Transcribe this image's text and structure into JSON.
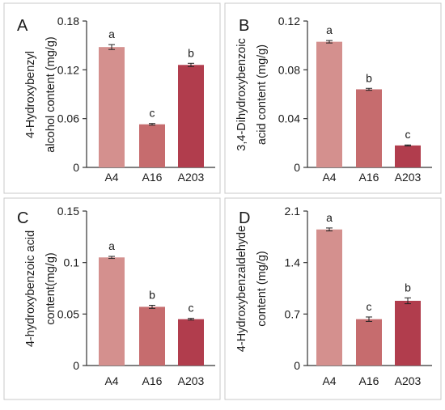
{
  "chart_data": [
    {
      "panel": "A",
      "type": "bar",
      "categories": [
        "A4",
        "A16",
        "A203"
      ],
      "values": [
        0.148,
        0.053,
        0.126
      ],
      "errors": [
        0.003,
        0.001,
        0.002
      ],
      "letters": [
        "a",
        "c",
        "b"
      ],
      "yticks": [
        "0",
        "0.06",
        "0.12",
        "0.18"
      ],
      "ylim": [
        0,
        0.18
      ],
      "ylabel": [
        "4-Hydroxybenzyl",
        "alcohol content (mg/g)"
      ],
      "colors": [
        "#d4908e",
        "#c66c6e",
        "#b13d4d"
      ]
    },
    {
      "panel": "B",
      "type": "bar",
      "categories": [
        "A4",
        "A16",
        "A203"
      ],
      "values": [
        0.103,
        0.064,
        0.018
      ],
      "errors": [
        0.001,
        0.0008,
        0.0004
      ],
      "letters": [
        "a",
        "b",
        "c"
      ],
      "yticks": [
        "0",
        "0.04",
        "0.08",
        "0.12"
      ],
      "ylim": [
        0,
        0.12
      ],
      "ylabel": [
        "3,4-Dihydroxybenzoic",
        "acid content (mg/g)"
      ],
      "colors": [
        "#d4908e",
        "#c66c6e",
        "#b13d4d"
      ]
    },
    {
      "panel": "C",
      "type": "bar",
      "categories": [
        "A4",
        "A16",
        "A203"
      ],
      "values": [
        0.105,
        0.057,
        0.045
      ],
      "errors": [
        0.001,
        0.0015,
        0.0008
      ],
      "letters": [
        "a",
        "b",
        "c"
      ],
      "yticks": [
        "0",
        "0.05",
        "0.1",
        "0.15"
      ],
      "ylim": [
        0,
        0.15
      ],
      "ylabel": [
        "4-hydroxybenzoic acid",
        "content(mg/g)"
      ],
      "colors": [
        "#d4908e",
        "#c66c6e",
        "#b13d4d"
      ]
    },
    {
      "panel": "D",
      "type": "bar",
      "categories": [
        "A4",
        "A16",
        "A203"
      ],
      "values": [
        1.85,
        0.63,
        0.88
      ],
      "errors": [
        0.02,
        0.03,
        0.04
      ],
      "letters": [
        "a",
        "c",
        "b"
      ],
      "yticks": [
        "0",
        "0.7",
        "1.4",
        "2.1"
      ],
      "ylim": [
        0,
        2.1
      ],
      "ylabel": [
        "4-Hydroxybenzaldehyde",
        "content (mg/g)"
      ],
      "colors": [
        "#d4908e",
        "#c66c6e",
        "#b13d4d"
      ]
    }
  ]
}
